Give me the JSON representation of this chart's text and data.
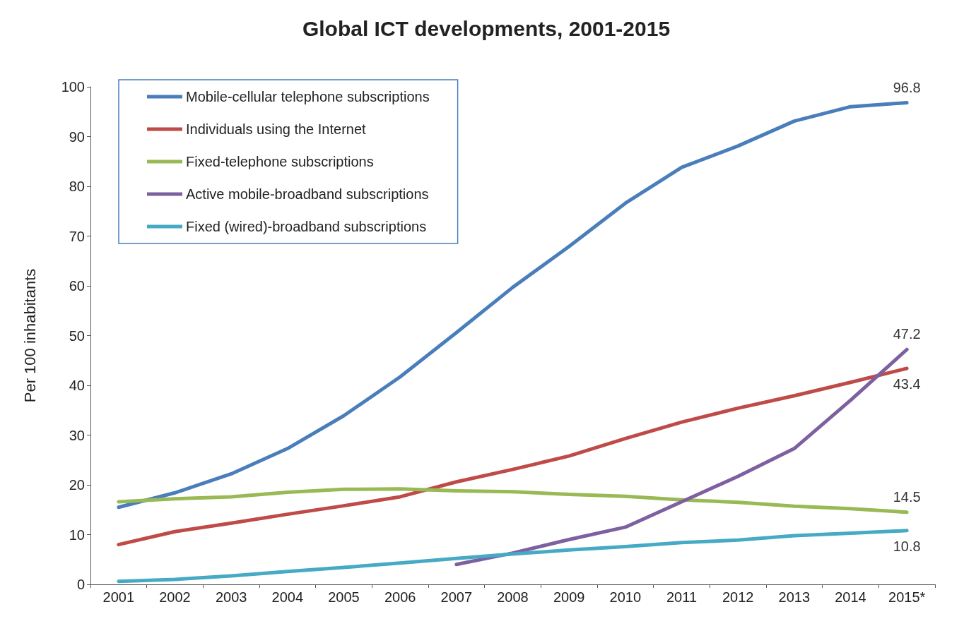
{
  "chart_data": {
    "type": "line",
    "title": "Global ICT developments, 2001-2015",
    "ylabel": "Per 100 inhabitants",
    "categories": [
      "2001",
      "2002",
      "2003",
      "2004",
      "2005",
      "2006",
      "2007",
      "2008",
      "2009",
      "2010",
      "2011",
      "2012",
      "2013",
      "2014",
      "2015*"
    ],
    "series": [
      {
        "name": "Mobile-cellular telephone subscriptions",
        "color": "#4a7ebb",
        "values": [
          15.5,
          18.4,
          22.2,
          27.3,
          33.9,
          41.7,
          50.6,
          59.7,
          67.9,
          76.6,
          83.8,
          88.1,
          93.1,
          96.0,
          96.8
        ],
        "value_labels": [
          null,
          null,
          null,
          null,
          null,
          null,
          null,
          null,
          null,
          null,
          null,
          null,
          null,
          null,
          "96.8"
        ]
      },
      {
        "name": "Individuals using the Internet",
        "color": "#be4b48",
        "values": [
          8.0,
          10.6,
          12.3,
          14.1,
          15.8,
          17.6,
          20.6,
          23.1,
          25.8,
          29.3,
          32.6,
          35.4,
          37.9,
          40.6,
          43.4
        ],
        "value_labels": [
          null,
          null,
          null,
          null,
          null,
          null,
          null,
          null,
          null,
          null,
          null,
          null,
          null,
          null,
          "43.4"
        ]
      },
      {
        "name": "Fixed-telephone subscriptions",
        "color": "#98b954",
        "values": [
          16.6,
          17.2,
          17.6,
          18.5,
          19.1,
          19.2,
          18.8,
          18.6,
          18.1,
          17.7,
          17.0,
          16.5,
          15.7,
          15.2,
          14.5
        ],
        "value_labels": [
          null,
          null,
          null,
          null,
          null,
          null,
          null,
          null,
          null,
          null,
          null,
          null,
          null,
          null,
          "14.5"
        ]
      },
      {
        "name": "Active mobile-broadband subscriptions",
        "color": "#7d60a0",
        "values": [
          null,
          null,
          null,
          null,
          null,
          null,
          4.0,
          6.3,
          9.0,
          11.5,
          16.6,
          21.7,
          27.3,
          37.0,
          47.2
        ],
        "value_labels": [
          null,
          null,
          null,
          null,
          null,
          null,
          null,
          null,
          null,
          null,
          null,
          null,
          null,
          null,
          "47.2"
        ]
      },
      {
        "name": "Fixed (wired)-broadband subscriptions",
        "color": "#46aac5",
        "values": [
          0.6,
          1.0,
          1.7,
          2.6,
          3.4,
          4.3,
          5.2,
          6.1,
          6.9,
          7.6,
          8.4,
          8.9,
          9.8,
          10.3,
          10.8
        ],
        "value_labels": [
          null,
          null,
          null,
          null,
          null,
          null,
          null,
          null,
          null,
          null,
          null,
          null,
          null,
          null,
          "10.8"
        ]
      }
    ],
    "ylim": [
      0,
      100
    ],
    "yticks": [
      0,
      10,
      20,
      30,
      40,
      50,
      60,
      70,
      80,
      90,
      100
    ],
    "grid": false,
    "legend": "top left",
    "marker": "none",
    "line_style": "solid"
  }
}
